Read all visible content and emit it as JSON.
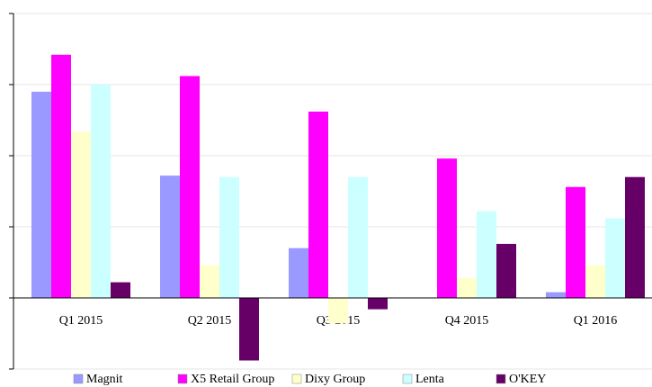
{
  "chart_data": {
    "type": "bar",
    "categories": [
      "Q1 2015",
      "Q2 2015",
      "Q3 2015",
      "Q4 2015",
      "Q1 2016"
    ],
    "series": [
      {
        "name": "Magnit",
        "color": "#9999ff",
        "values": [
          14.5,
          8.6,
          3.5,
          0,
          0.4
        ]
      },
      {
        "name": "X5 Retail Group",
        "color": "#ff00ff",
        "values": [
          17.1,
          15.6,
          13.1,
          9.8,
          7.8
        ]
      },
      {
        "name": "Dixy Group",
        "color": "#ffffcc",
        "values": [
          11.7,
          2.3,
          -1.8,
          1.4,
          2.3
        ]
      },
      {
        "name": "Lenta",
        "color": "#ccffff",
        "values": [
          15.0,
          8.5,
          8.5,
          6.1,
          5.6
        ]
      },
      {
        "name": "O'KEY",
        "color": "#660066",
        "values": [
          1.1,
          -4.4,
          -0.8,
          3.8,
          8.5
        ]
      }
    ],
    "ylim": [
      -5,
      20
    ],
    "yticks": [
      -5,
      0,
      5,
      10,
      15,
      20
    ],
    "grid": true,
    "legend": "bottom"
  }
}
